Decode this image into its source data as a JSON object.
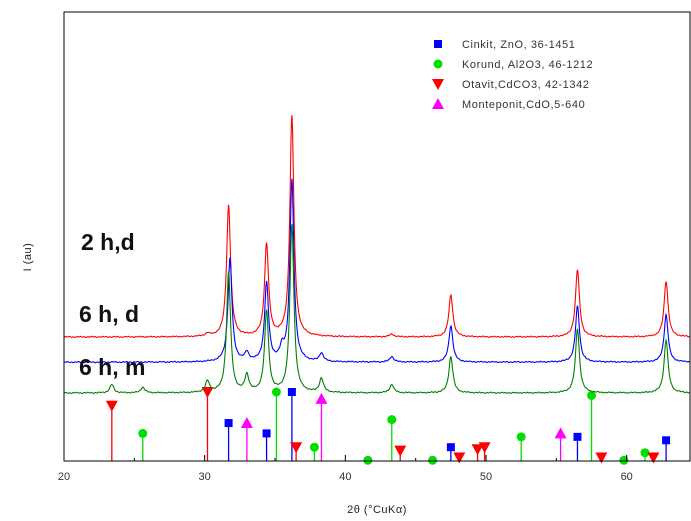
{
  "chart_data": {
    "type": "line",
    "xlabel": "2θ (°CuKα)",
    "ylabel": "I (au)",
    "xlim": [
      20,
      64.5
    ],
    "x_ticks": [
      20,
      30,
      40,
      50,
      60
    ],
    "y_ticks_shown": false,
    "grid": false,
    "legend_position": "top-right",
    "legend": [
      {
        "label": "Cinkit, ZnO, 36-1451",
        "marker": "square",
        "color": "#0000ff"
      },
      {
        "label": "Korund, Al2O3, 46-1212",
        "marker": "circle",
        "color": "#00dd00"
      },
      {
        "label": "Otavit,CdCO3, 42-1342",
        "marker": "triangle-down",
        "color": "#ff0000"
      },
      {
        "label": "Monteponit,CdO,5-640",
        "marker": "triangle-up",
        "color": "#ff00ff"
      }
    ],
    "series": [
      {
        "name": "2 h,d",
        "color": "#ff0000",
        "baseline": 1.0,
        "peaks": [
          [
            30.2,
            0.05
          ],
          [
            31.7,
            2.35
          ],
          [
            34.4,
            1.65
          ],
          [
            36.2,
            3.95
          ],
          [
            43.3,
            0.05
          ],
          [
            47.5,
            0.75
          ],
          [
            56.5,
            1.2
          ],
          [
            62.8,
            1.0
          ]
        ]
      },
      {
        "name": "6 h, d",
        "color": "#0000ff",
        "baseline": 0.55,
        "peaks": [
          [
            31.8,
            1.85
          ],
          [
            33.0,
            0.15
          ],
          [
            34.4,
            1.4
          ],
          [
            35.5,
            0.2
          ],
          [
            36.2,
            3.25
          ],
          [
            38.3,
            0.15
          ],
          [
            43.3,
            0.1
          ],
          [
            47.5,
            0.65
          ],
          [
            56.5,
            1.0
          ],
          [
            62.8,
            0.85
          ]
        ]
      },
      {
        "name": "6 h, m",
        "color": "#008000",
        "baseline": 0.0,
        "peaks": [
          [
            23.4,
            0.15
          ],
          [
            25.6,
            0.1
          ],
          [
            30.2,
            0.2
          ],
          [
            31.7,
            2.15
          ],
          [
            33.0,
            0.3
          ],
          [
            34.4,
            1.45
          ],
          [
            36.2,
            3.0
          ],
          [
            38.3,
            0.25
          ],
          [
            43.3,
            0.15
          ],
          [
            47.5,
            0.65
          ],
          [
            56.5,
            1.15
          ],
          [
            62.8,
            0.95
          ]
        ]
      }
    ],
    "reference_markers": {
      "cinkit": [
        [
          31.7,
          0.55
        ],
        [
          34.4,
          0.4
        ],
        [
          36.2,
          1.0
        ],
        [
          47.5,
          0.2
        ],
        [
          56.5,
          0.35
        ],
        [
          62.8,
          0.3
        ]
      ],
      "korund": [
        [
          25.6,
          0.4
        ],
        [
          35.1,
          1.0
        ],
        [
          37.8,
          0.2
        ],
        [
          41.6,
          0.01
        ],
        [
          43.3,
          0.6
        ],
        [
          46.2,
          0.01
        ],
        [
          52.5,
          0.35
        ],
        [
          57.5,
          0.95
        ],
        [
          59.8,
          0.01
        ],
        [
          61.3,
          0.12
        ]
      ],
      "otavit": [
        [
          23.4,
          0.8
        ],
        [
          30.2,
          1.0
        ],
        [
          36.5,
          0.2
        ],
        [
          43.9,
          0.15
        ],
        [
          48.1,
          0.05
        ],
        [
          49.4,
          0.17
        ],
        [
          49.9,
          0.2
        ],
        [
          58.2,
          0.05
        ],
        [
          61.9,
          0.05
        ]
      ],
      "monteponit": [
        [
          33.0,
          0.55
        ],
        [
          38.3,
          0.9
        ],
        [
          55.3,
          0.4
        ]
      ]
    }
  }
}
